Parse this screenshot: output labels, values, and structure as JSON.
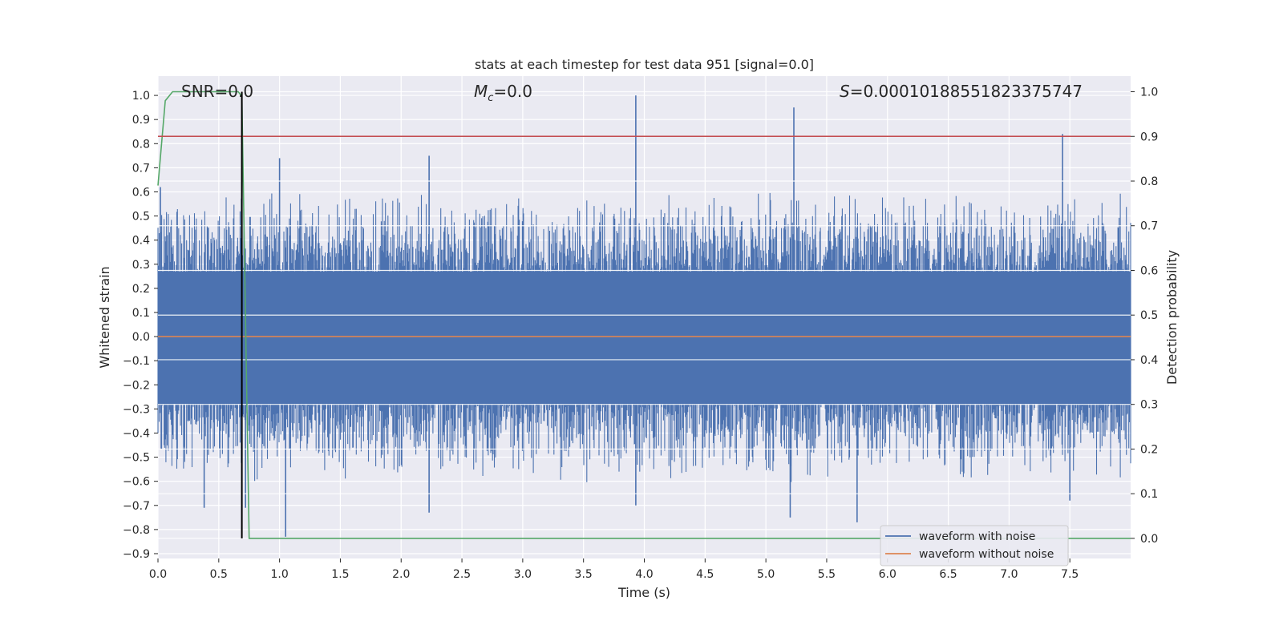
{
  "chart_data": {
    "type": "line",
    "title": "stats at each timestep for test data 951 [signal=0.0]",
    "xlabel": "Time (s)",
    "ylabel_left": "Whitened strain",
    "ylabel_right": "Detection probability",
    "xlim": [
      0.0,
      8.0
    ],
    "ylim_left": [
      -0.92,
      1.08
    ],
    "ylim_right": [
      -0.045,
      1.035
    ],
    "x_ticks": [
      "0.0",
      "0.5",
      "1.0",
      "1.5",
      "2.0",
      "2.5",
      "3.0",
      "3.5",
      "4.0",
      "4.5",
      "5.0",
      "5.5",
      "6.0",
      "6.5",
      "7.0",
      "7.5"
    ],
    "y_ticks_left": [
      "1.0",
      "0.9",
      "0.8",
      "0.7",
      "0.6",
      "0.5",
      "0.4",
      "0.3",
      "0.2",
      "0.1",
      "0.0",
      "−0.1",
      "−0.2",
      "−0.3",
      "−0.4",
      "−0.5",
      "−0.6",
      "−0.7",
      "−0.8",
      "−0.9"
    ],
    "y_ticks_right": [
      "1.0",
      "0.9",
      "0.8",
      "0.7",
      "0.6",
      "0.5",
      "0.4",
      "0.3",
      "0.2",
      "0.1",
      "0.0"
    ],
    "annotations": {
      "snr": "SNR=0.0",
      "mc_symbol": "M",
      "mc_sub": "c",
      "mc_value": "=0.0",
      "s_symbol": "S",
      "s_value": "=0.00010188551823375747"
    },
    "legend": {
      "position": "lower-right",
      "entries": [
        "waveform with noise",
        "waveform without noise"
      ]
    },
    "series": [
      {
        "name": "waveform with noise",
        "axis": "left",
        "color": "#4c72b0",
        "kind": "noise",
        "samples_approx": 1600,
        "typical_range": [
          -0.45,
          0.45
        ],
        "notable_peaks": [
          {
            "x": 0.02,
            "y": 0.62
          },
          {
            "x": 0.38,
            "y": -0.71
          },
          {
            "x": 0.72,
            "y": -0.71
          },
          {
            "x": 1.05,
            "y": -0.83
          },
          {
            "x": 1.0,
            "y": 0.74
          },
          {
            "x": 2.23,
            "y": -0.73
          },
          {
            "x": 2.23,
            "y": 0.75
          },
          {
            "x": 3.93,
            "y": 1.0
          },
          {
            "x": 3.93,
            "y": -0.7
          },
          {
            "x": 5.23,
            "y": 0.95
          },
          {
            "x": 5.2,
            "y": -0.75
          },
          {
            "x": 5.75,
            "y": -0.77
          },
          {
            "x": 7.44,
            "y": 0.84
          },
          {
            "x": 7.5,
            "y": -0.68
          }
        ]
      },
      {
        "name": "waveform without noise",
        "axis": "left",
        "color": "#dd8452",
        "x": [
          0.0,
          8.0
        ],
        "y": [
          0.0,
          0.0
        ]
      },
      {
        "name": "detection probability",
        "axis": "right",
        "color": "#55a868",
        "x": [
          0.0,
          0.06,
          0.12,
          0.2,
          0.66,
          0.69,
          0.75,
          8.0
        ],
        "y": [
          0.79,
          0.98,
          1.0,
          1.0,
          1.0,
          0.99,
          0.0,
          0.0
        ]
      },
      {
        "name": "threshold",
        "axis": "right",
        "color": "#c44e52",
        "x": [
          0.0,
          8.0
        ],
        "y": [
          0.9,
          0.9
        ]
      },
      {
        "name": "peak marker",
        "axis": "right",
        "color": "#000000",
        "x": [
          0.69,
          0.69
        ],
        "y": [
          0.0,
          1.0
        ]
      }
    ]
  }
}
